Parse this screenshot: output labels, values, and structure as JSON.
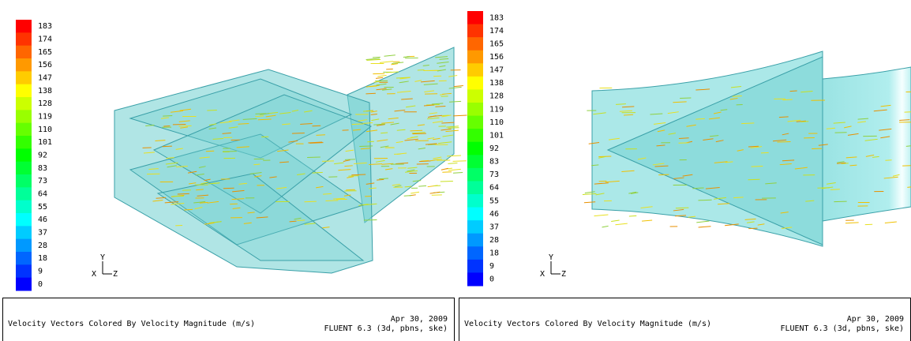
{
  "panels": [
    {
      "colorbar_labels": [
        183,
        174,
        165,
        156,
        147,
        138,
        128,
        119,
        110,
        101,
        92,
        83,
        73,
        64,
        55,
        46,
        37,
        28,
        18,
        9,
        0
      ],
      "axes": {
        "y": "Y",
        "x": "X",
        "z": "Z"
      },
      "caption": "Velocity Vectors Colored By Velocity Magnitude (m/s)",
      "date": "Apr 30, 2009",
      "version": "FLUENT 6.3 (3d, pbns, ske)"
    },
    {
      "colorbar_labels": [
        183,
        174,
        165,
        156,
        147,
        138,
        128,
        119,
        110,
        101,
        92,
        83,
        73,
        64,
        55,
        46,
        37,
        28,
        18,
        9,
        0
      ],
      "axes": {
        "y": "Y",
        "x": "X",
        "z": "Z"
      },
      "caption": "Velocity Vectors Colored By Velocity Magnitude (m/s)",
      "date": "Apr 30, 2009",
      "version": "FLUENT 6.3 (3d, pbns, ske)"
    }
  ]
}
